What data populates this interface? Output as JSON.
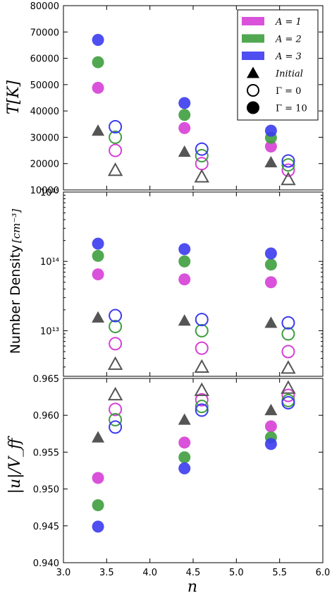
{
  "chart_data": [
    {
      "type": "scatter",
      "ylabel": "T[K]",
      "ylim": [
        10000,
        80000
      ],
      "yticks": [
        "10000",
        "20000",
        "30000",
        "40000",
        "50000",
        "60000",
        "70000",
        "80000"
      ],
      "ytick_values": [
        10000,
        20000,
        30000,
        40000,
        50000,
        60000,
        70000,
        80000
      ],
      "grid": false,
      "series": [
        {
          "name": "A=1",
          "marker": "filled-circle",
          "color": "#d63fd6",
          "x": [
            3.4,
            4.4,
            5.4
          ],
          "y": [
            48800,
            33500,
            26500
          ]
        },
        {
          "name": "A=2",
          "marker": "filled-circle",
          "color": "#3e9e3e",
          "x": [
            3.4,
            4.4,
            5.4
          ],
          "y": [
            58500,
            38500,
            29800
          ]
        },
        {
          "name": "A=3",
          "marker": "filled-circle",
          "color": "#3b3bef",
          "x": [
            3.4,
            4.4,
            5.4
          ],
          "y": [
            67000,
            43000,
            32500
          ]
        },
        {
          "name": "Initial",
          "marker": "filled-triangle",
          "color": "#555555",
          "x": [
            3.4,
            4.4,
            5.4
          ],
          "y": [
            32500,
            24500,
            20500
          ]
        },
        {
          "name": "A=1 Γ=0",
          "marker": "open-circle",
          "color": "#d63fd6",
          "x": [
            3.6,
            4.6,
            5.6
          ],
          "y": [
            25000,
            20000,
            17500
          ]
        },
        {
          "name": "A=2 Γ=0",
          "marker": "open-circle",
          "color": "#3e9e3e",
          "x": [
            3.6,
            4.6,
            5.6
          ],
          "y": [
            30000,
            23000,
            19500
          ]
        },
        {
          "name": "A=3 Γ=0",
          "marker": "open-circle",
          "color": "#3b3bef",
          "x": [
            3.6,
            4.6,
            5.6
          ],
          "y": [
            34000,
            25500,
            21000
          ]
        },
        {
          "name": "Initial Γ=0",
          "marker": "open-triangle",
          "color": "#555555",
          "x": [
            3.6,
            4.6,
            5.6
          ],
          "y": [
            17500,
            15000,
            14000
          ]
        }
      ]
    },
    {
      "type": "scatter",
      "ylabel_text": "Number Density",
      "ylabel_unit": "[cm⁻³]",
      "yscale": "log",
      "ylim": [
        2200000000000.0,
        1000000000000000.0
      ],
      "yticks": [
        "10¹³",
        "10¹⁴",
        "10¹⁵"
      ],
      "ytick_values": [
        10000000000000.0,
        100000000000000.0,
        1000000000000000.0
      ],
      "grid": false,
      "series": [
        {
          "name": "A=1",
          "marker": "filled-circle",
          "color": "#d63fd6",
          "x": [
            3.4,
            4.4,
            5.4
          ],
          "y": [
            65000000000000.0,
            55000000000000.0,
            50000000000000.0
          ]
        },
        {
          "name": "A=2",
          "marker": "filled-circle",
          "color": "#3e9e3e",
          "x": [
            3.4,
            4.4,
            5.4
          ],
          "y": [
            120000000000000.0,
            100000000000000.0,
            90000000000000.0
          ]
        },
        {
          "name": "A=3",
          "marker": "filled-circle",
          "color": "#3b3bef",
          "x": [
            3.4,
            4.4,
            5.4
          ],
          "y": [
            180000000000000.0,
            150000000000000.0,
            130000000000000.0
          ]
        },
        {
          "name": "Initial",
          "marker": "filled-triangle",
          "color": "#555555",
          "x": [
            3.4,
            4.4,
            5.4
          ],
          "y": [
            15500000000000.0,
            14000000000000.0,
            13000000000000.0
          ]
        },
        {
          "name": "A=1 Γ=0",
          "marker": "open-circle",
          "color": "#d63fd6",
          "x": [
            3.6,
            4.6,
            5.6
          ],
          "y": [
            6500000000000.0,
            5600000000000.0,
            5000000000000.0
          ]
        },
        {
          "name": "A=2 Γ=0",
          "marker": "open-circle",
          "color": "#3e9e3e",
          "x": [
            3.6,
            4.6,
            5.6
          ],
          "y": [
            11500000000000.0,
            10000000000000.0,
            9000000000000.0
          ]
        },
        {
          "name": "A=3 Γ=0",
          "marker": "open-circle",
          "color": "#3b3bef",
          "x": [
            3.6,
            4.6,
            5.6
          ],
          "y": [
            16500000000000.0,
            14500000000000.0,
            13000000000000.0
          ]
        },
        {
          "name": "Initial Γ=0",
          "marker": "open-triangle",
          "color": "#555555",
          "x": [
            3.6,
            4.6,
            5.6
          ],
          "y": [
            3300000000000.0,
            3000000000000.0,
            2900000000000.0
          ]
        }
      ]
    },
    {
      "type": "scatter",
      "ylabel": "|u|/V_ff",
      "xlabel": "n",
      "ylim": [
        0.94,
        0.965
      ],
      "xlim": [
        3.0,
        6.0
      ],
      "yticks": [
        "0.940",
        "0.945",
        "0.950",
        "0.955",
        "0.960",
        "0.965"
      ],
      "ytick_values": [
        0.94,
        0.945,
        0.95,
        0.955,
        0.96,
        0.965
      ],
      "xticks": [
        "3.0",
        "3.5",
        "4.0",
        "4.5",
        "5.0",
        "5.5",
        "6.0"
      ],
      "xtick_values": [
        3.0,
        3.5,
        4.0,
        4.5,
        5.0,
        5.5,
        6.0
      ],
      "grid": false,
      "series": [
        {
          "name": "A=1",
          "marker": "filled-circle",
          "color": "#d63fd6",
          "x": [
            3.4,
            4.4,
            5.4
          ],
          "y": [
            0.9515,
            0.9563,
            0.9585
          ]
        },
        {
          "name": "A=2",
          "marker": "filled-circle",
          "color": "#3e9e3e",
          "x": [
            3.4,
            4.4,
            5.4
          ],
          "y": [
            0.9478,
            0.9543,
            0.957
          ]
        },
        {
          "name": "A=3",
          "marker": "filled-circle",
          "color": "#3b3bef",
          "x": [
            3.4,
            4.4,
            5.4
          ],
          "y": [
            0.9449,
            0.9528,
            0.9561
          ]
        },
        {
          "name": "Initial",
          "marker": "filled-triangle",
          "color": "#555555",
          "x": [
            3.4,
            4.4,
            5.4
          ],
          "y": [
            0.957,
            0.9594,
            0.9607
          ]
        },
        {
          "name": "A=1 Γ=0",
          "marker": "open-circle",
          "color": "#d63fd6",
          "x": [
            3.6,
            4.6,
            5.6
          ],
          "y": [
            0.9608,
            0.9621,
            0.9627
          ]
        },
        {
          "name": "A=2 Γ=0",
          "marker": "open-circle",
          "color": "#3e9e3e",
          "x": [
            3.6,
            4.6,
            5.6
          ],
          "y": [
            0.9594,
            0.9612,
            0.962
          ]
        },
        {
          "name": "A=3 Γ=0",
          "marker": "open-circle",
          "color": "#3b3bef",
          "x": [
            3.6,
            4.6,
            5.6
          ],
          "y": [
            0.9584,
            0.9607,
            0.9617
          ]
        },
        {
          "name": "Initial Γ=0",
          "marker": "open-triangle",
          "color": "#555555",
          "x": [
            3.6,
            4.6,
            5.6
          ],
          "y": [
            0.9628,
            0.9634,
            0.9637
          ]
        }
      ]
    }
  ],
  "legend": {
    "placement": "top-right of top panel",
    "entries": [
      {
        "label": "A = 1",
        "kind": "patch",
        "color": "#d63fd6"
      },
      {
        "label": "A = 2",
        "kind": "patch",
        "color": "#3e9e3e"
      },
      {
        "label": "A = 3",
        "kind": "patch",
        "color": "#3b3bef"
      },
      {
        "label": "Initial",
        "kind": "filled-triangle",
        "color": "#000000"
      },
      {
        "label": "Γ = 0",
        "kind": "open-circle",
        "color": "#000000"
      },
      {
        "label": "Γ = 10",
        "kind": "filled-circle",
        "color": "#000000"
      }
    ]
  },
  "labels": {
    "top_ylabel": "T[K]",
    "mid_ylabel_text": "Number Density",
    "mid_ylabel_unit": "[cm⁻³]",
    "bottom_ylabel": "|u|/V_ff",
    "xlabel": "n"
  }
}
